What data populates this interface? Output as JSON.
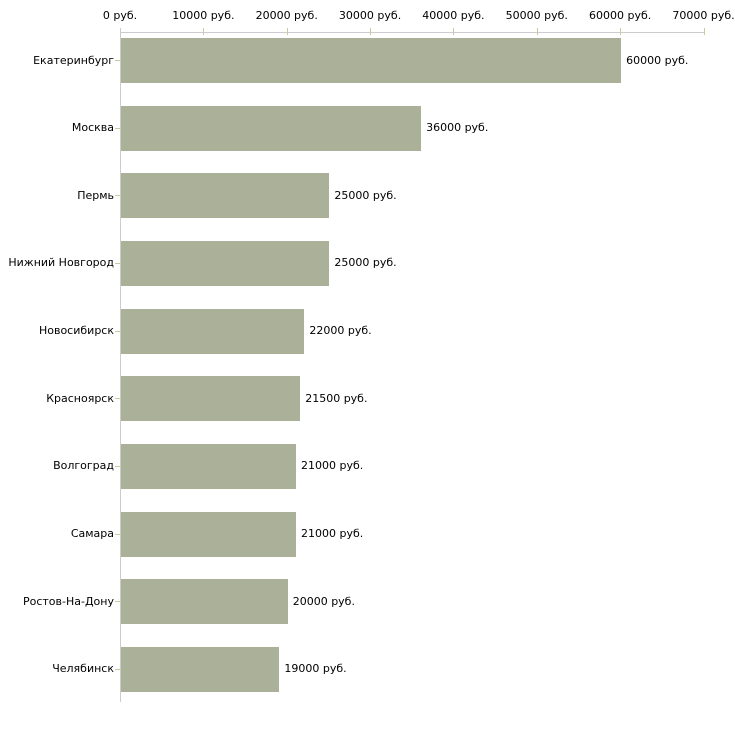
{
  "chart_data": {
    "type": "bar",
    "orientation": "horizontal",
    "title": "",
    "categories": [
      "Екатеринбург",
      "Москва",
      "Пермь",
      "Нижний Новгород",
      "Новосибирск",
      "Красноярск",
      "Волгоград",
      "Самара",
      "Ростов-На-Дону",
      "Челябинск"
    ],
    "values": [
      60000,
      36000,
      25000,
      25000,
      22000,
      21500,
      21000,
      21000,
      20000,
      19000
    ],
    "value_labels": [
      "60000 руб.",
      "36000 руб.",
      "25000 руб.",
      "25000 руб.",
      "22000 руб.",
      "21500 руб.",
      "21000 руб.",
      "21000 руб.",
      "20000 руб.",
      "19000 руб."
    ],
    "x_ticks": [
      0,
      10000,
      20000,
      30000,
      40000,
      50000,
      60000,
      70000
    ],
    "x_tick_labels": [
      "0 руб.",
      "10000 руб.",
      "20000 руб.",
      "30000 руб.",
      "40000 руб.",
      "50000 руб.",
      "60000 руб.",
      "70000 руб."
    ],
    "xlim": [
      0,
      70000
    ],
    "unit": "руб.",
    "ylabel": "",
    "xlabel": "",
    "legend": "none",
    "grid": "off",
    "colors": {
      "bar": "#abb198",
      "axis_line": "#cccccc",
      "tick": "#c9c9a2",
      "text": "#000000",
      "background": "#ffffff"
    }
  }
}
